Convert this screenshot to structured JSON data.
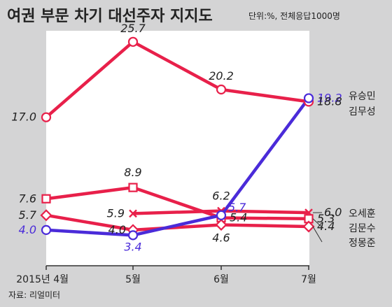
{
  "header": {
    "title": "여권 부문 차기 대선주자 지지도",
    "subtitle": "단위:%, 전체응답1000명"
  },
  "source": "자료: 리얼미터",
  "colors": {
    "background": "#d4d4d5",
    "plot_area": "#ffffff",
    "red_series": "#e8204a",
    "blue_series": "#4a2bd9",
    "text": "#222222"
  },
  "chart_data": {
    "type": "line",
    "title": "여권 부문 차기 대선주자 지지도",
    "subtitle": "단위:%, 전체응답1000명",
    "xlabel": "",
    "ylabel": "",
    "grid": false,
    "categories": [
      "2015년 4월",
      "5월",
      "6월",
      "7월"
    ],
    "ylim": [
      0,
      27
    ],
    "series": [
      {
        "name": "유승민",
        "color": "#4a2bd9",
        "marker": "circle",
        "values": [
          4.0,
          3.4,
          5.7,
          19.2
        ],
        "value_labels": [
          "4.0",
          "3.4",
          "5.7",
          "19.2"
        ]
      },
      {
        "name": "김무성",
        "color": "#e8204a",
        "marker": "circle",
        "values": [
          17.0,
          25.7,
          20.2,
          18.8
        ],
        "value_labels": [
          "17.0",
          "25.7",
          "20.2",
          "18.8"
        ]
      },
      {
        "name": "오세훈",
        "color": "#e8204a",
        "marker": "x",
        "values": [
          null,
          5.9,
          6.2,
          6.0
        ],
        "value_labels": [
          "",
          "5.9",
          "6.2",
          "6.0"
        ]
      },
      {
        "name": "김문수",
        "color": "#e8204a",
        "marker": "square",
        "values": [
          7.6,
          8.9,
          5.4,
          5.3
        ],
        "value_labels": [
          "7.6",
          "8.9",
          "5.4",
          "5.3"
        ]
      },
      {
        "name": "정몽준",
        "color": "#e8204a",
        "marker": "diamond",
        "values": [
          5.7,
          4.0,
          4.6,
          4.4
        ],
        "value_labels": [
          "5.7",
          "4.0",
          "4.6",
          "4.4"
        ]
      }
    ]
  }
}
